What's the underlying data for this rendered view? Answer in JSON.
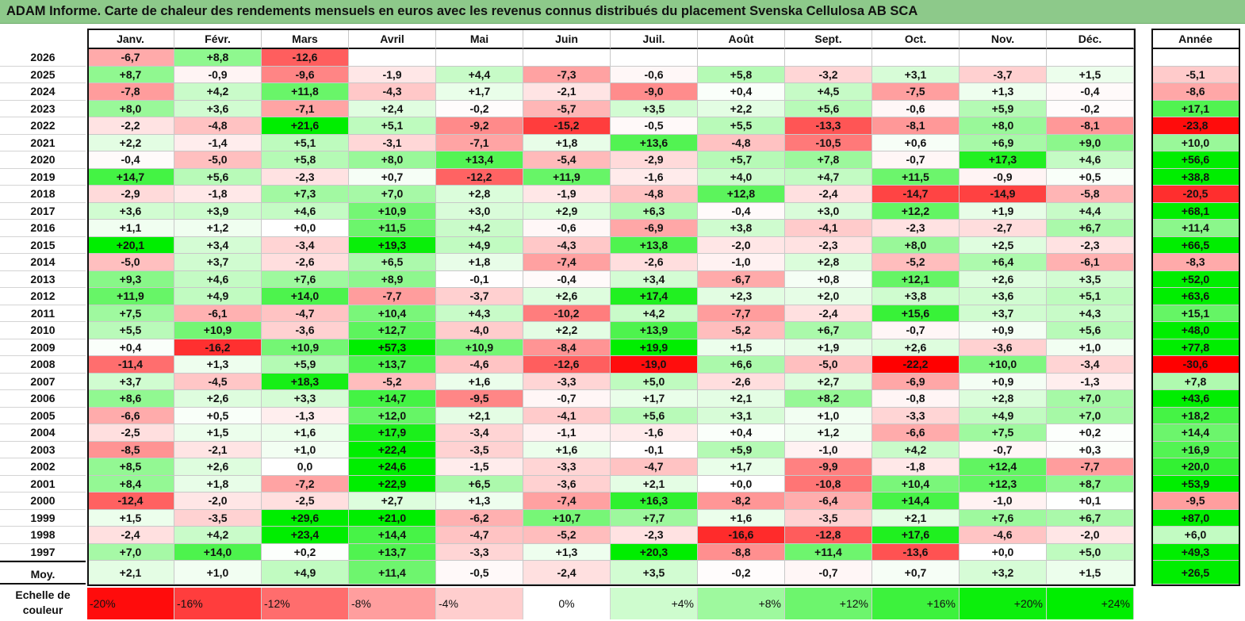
{
  "title": "ADAM Informe. Carte de chaleur des rendements mensuels en euros avec les revenus connus distribués du placement Svenska Cellulosa AB SCA",
  "months": [
    "Janv.",
    "Févr.",
    "Mars",
    "Avril",
    "Mai",
    "Juin",
    "Juil.",
    "Août",
    "Sept.",
    "Oct.",
    "Nov.",
    "Déc."
  ],
  "year_header": "Année",
  "avg_label": "Moy.",
  "scale_label": "Echelle de couleur",
  "colors": {
    "negative": "#ff0000",
    "neutral": "#ffffff",
    "positive": "#00ee00",
    "header_bg": "#8dc98a"
  },
  "chart_data": {
    "type": "heatmap",
    "title": "ADAM Informe. Carte de chaleur des rendements mensuels en euros avec les revenus connus distribués du placement Svenska Cellulosa AB SCA",
    "x_categories": [
      "Janv.",
      "Févr.",
      "Mars",
      "Avril",
      "Mai",
      "Juin",
      "Juil.",
      "Août",
      "Sept.",
      "Oct.",
      "Nov.",
      "Déc."
    ],
    "rows": [
      {
        "year": "2026",
        "months": [
          "-6,7",
          "+8,8",
          "-12,6",
          "",
          "",
          "",
          "",
          "",
          "",
          "",
          "",
          ""
        ],
        "annual": ""
      },
      {
        "year": "2025",
        "months": [
          "+8,7",
          "-0,9",
          "-9,6",
          "-1,9",
          "+4,4",
          "-7,3",
          "-0,6",
          "+5,8",
          "-3,2",
          "+3,1",
          "-3,7",
          "+1,5"
        ],
        "annual": "-5,1"
      },
      {
        "year": "2024",
        "months": [
          "-7,8",
          "+4,2",
          "+11,8",
          "-4,3",
          "+1,7",
          "-2,1",
          "-9,0",
          "+0,4",
          "+4,5",
          "-7,5",
          "+1,3",
          "-0,4"
        ],
        "annual": "-8,6"
      },
      {
        "year": "2023",
        "months": [
          "+8,0",
          "+3,6",
          "-7,1",
          "+2,4",
          "-0,2",
          "-5,7",
          "+3,5",
          "+2,2",
          "+5,6",
          "-0,6",
          "+5,9",
          "-0,2"
        ],
        "annual": "+17,1"
      },
      {
        "year": "2022",
        "months": [
          "-2,2",
          "-4,8",
          "+21,6",
          "+5,1",
          "-9,2",
          "-15,2",
          "-0,5",
          "+5,5",
          "-13,3",
          "-8,1",
          "+8,0",
          "-8,1"
        ],
        "annual": "-23,8"
      },
      {
        "year": "2021",
        "months": [
          "+2,2",
          "-1,4",
          "+5,1",
          "-3,1",
          "-7,1",
          "+1,8",
          "+13,6",
          "-4,8",
          "-10,5",
          "+0,6",
          "+6,9",
          "+9,0"
        ],
        "annual": "+10,0"
      },
      {
        "year": "2020",
        "months": [
          "-0,4",
          "-5,0",
          "+5,8",
          "+8,0",
          "+13,4",
          "-5,4",
          "-2,9",
          "+5,7",
          "+7,8",
          "-0,7",
          "+17,3",
          "+4,6"
        ],
        "annual": "+56,6"
      },
      {
        "year": "2019",
        "months": [
          "+14,7",
          "+5,6",
          "-2,3",
          "+0,7",
          "-12,2",
          "+11,9",
          "-1,6",
          "+4,0",
          "+4,7",
          "+11,5",
          "-0,9",
          "+0,5"
        ],
        "annual": "+38,8"
      },
      {
        "year": "2018",
        "months": [
          "-2,9",
          "-1,8",
          "+7,3",
          "+7,0",
          "+2,8",
          "-1,9",
          "-4,8",
          "+12,8",
          "-2,4",
          "-14,7",
          "-14,9",
          "-5,8"
        ],
        "annual": "-20,5"
      },
      {
        "year": "2017",
        "months": [
          "+3,6",
          "+3,9",
          "+4,6",
          "+10,9",
          "+3,0",
          "+2,9",
          "+6,3",
          "-0,4",
          "+3,0",
          "+12,2",
          "+1,9",
          "+4,4"
        ],
        "annual": "+68,1"
      },
      {
        "year": "2016",
        "months": [
          "+1,1",
          "+1,2",
          "+0,0",
          "+11,5",
          "+4,2",
          "-0,6",
          "-6,9",
          "+3,8",
          "-4,1",
          "-2,3",
          "-2,7",
          "+6,7"
        ],
        "annual": "+11,4"
      },
      {
        "year": "2015",
        "months": [
          "+20,1",
          "+3,4",
          "-3,4",
          "+19,3",
          "+4,9",
          "-4,3",
          "+13,8",
          "-2,0",
          "-2,3",
          "+8,0",
          "+2,5",
          "-2,3"
        ],
        "annual": "+66,5"
      },
      {
        "year": "2014",
        "months": [
          "-5,0",
          "+3,7",
          "-2,6",
          "+6,5",
          "+1,8",
          "-7,4",
          "-2,6",
          "-1,0",
          "+2,8",
          "-5,2",
          "+6,4",
          "-6,1"
        ],
        "annual": "-8,3"
      },
      {
        "year": "2013",
        "months": [
          "+9,3",
          "+4,6",
          "+7,6",
          "+8,9",
          "-0,1",
          "-0,4",
          "+3,4",
          "-6,7",
          "+0,8",
          "+12,1",
          "+2,6",
          "+3,5"
        ],
        "annual": "+52,0"
      },
      {
        "year": "2012",
        "months": [
          "+11,9",
          "+4,9",
          "+14,0",
          "-7,7",
          "-3,7",
          "+2,6",
          "+17,4",
          "+2,3",
          "+2,0",
          "+3,8",
          "+3,6",
          "+5,1"
        ],
        "annual": "+63,6"
      },
      {
        "year": "2011",
        "months": [
          "+7,5",
          "-6,1",
          "-4,7",
          "+10,4",
          "+4,3",
          "-10,2",
          "+4,2",
          "-7,7",
          "-2,4",
          "+15,6",
          "+3,7",
          "+4,3"
        ],
        "annual": "+15,1"
      },
      {
        "year": "2010",
        "months": [
          "+5,5",
          "+10,9",
          "-3,6",
          "+12,7",
          "-4,0",
          "+2,2",
          "+13,9",
          "-5,2",
          "+6,7",
          "-0,7",
          "+0,9",
          "+5,6"
        ],
        "annual": "+48,0"
      },
      {
        "year": "2009",
        "months": [
          "+0,4",
          "-16,2",
          "+10,9",
          "+57,3",
          "+10,9",
          "-8,4",
          "+19,9",
          "+1,5",
          "+1,9",
          "+2,6",
          "-3,6",
          "+1,0"
        ],
        "annual": "+77,8"
      },
      {
        "year": "2008",
        "months": [
          "-11,4",
          "+1,3",
          "+5,9",
          "+13,7",
          "-4,6",
          "-12,6",
          "-19,0",
          "+6,6",
          "-5,0",
          "-22,2",
          "+10,0",
          "-3,4"
        ],
        "annual": "-30,6"
      },
      {
        "year": "2007",
        "months": [
          "+3,7",
          "-4,5",
          "+18,3",
          "-5,2",
          "+1,6",
          "-3,3",
          "+5,0",
          "-2,6",
          "+2,7",
          "-6,9",
          "+0,9",
          "-1,3"
        ],
        "annual": "+7,8"
      },
      {
        "year": "2006",
        "months": [
          "+8,6",
          "+2,6",
          "+3,3",
          "+14,7",
          "-9,5",
          "-0,7",
          "+1,7",
          "+2,1",
          "+8,2",
          "-0,8",
          "+2,8",
          "+7,0"
        ],
        "annual": "+43,6"
      },
      {
        "year": "2005",
        "months": [
          "-6,6",
          "+0,5",
          "-1,3",
          "+12,0",
          "+2,1",
          "-4,1",
          "+5,6",
          "+3,1",
          "+1,0",
          "-3,3",
          "+4,9",
          "+7,0"
        ],
        "annual": "+18,2"
      },
      {
        "year": "2004",
        "months": [
          "-2,5",
          "+1,5",
          "+1,6",
          "+17,9",
          "-3,4",
          "-1,1",
          "-1,6",
          "+0,4",
          "+1,2",
          "-6,6",
          "+7,5",
          "+0,2"
        ],
        "annual": "+14,4"
      },
      {
        "year": "2003",
        "months": [
          "-8,5",
          "-2,1",
          "+1,0",
          "+22,4",
          "-3,5",
          "+1,6",
          "-0,1",
          "+5,9",
          "-1,0",
          "+4,2",
          "-0,7",
          "+0,3"
        ],
        "annual": "+16,9"
      },
      {
        "year": "2002",
        "months": [
          "+8,5",
          "+2,6",
          "0,0",
          "+24,6",
          "-1,5",
          "-3,3",
          "-4,7",
          "+1,7",
          "-9,9",
          "-1,8",
          "+12,4",
          "-7,7"
        ],
        "annual": "+20,0"
      },
      {
        "year": "2001",
        "months": [
          "+8,4",
          "+1,8",
          "-7,2",
          "+22,9",
          "+6,5",
          "-3,6",
          "+2,1",
          "+0,0",
          "-10,8",
          "+10,4",
          "+12,3",
          "+8,7"
        ],
        "annual": "+53,9"
      },
      {
        "year": "2000",
        "months": [
          "-12,4",
          "-2,0",
          "-2,5",
          "+2,7",
          "+1,3",
          "-7,4",
          "+16,3",
          "-8,2",
          "-6,4",
          "+14,4",
          "-1,0",
          "+0,1"
        ],
        "annual": "-9,5"
      },
      {
        "year": "1999",
        "months": [
          "+1,5",
          "-3,5",
          "+29,6",
          "+21,0",
          "-6,2",
          "+10,7",
          "+7,7",
          "+1,6",
          "-3,5",
          "+2,1",
          "+7,6",
          "+6,7"
        ],
        "annual": "+87,0"
      },
      {
        "year": "1998",
        "months": [
          "-2,4",
          "+4,2",
          "+23,4",
          "+14,4",
          "-4,7",
          "-5,2",
          "-2,3",
          "-16,6",
          "-12,8",
          "+17,6",
          "-4,6",
          "-2,0"
        ],
        "annual": "+6,0"
      },
      {
        "year": "1997",
        "months": [
          "+7,0",
          "+14,0",
          "+0,2",
          "+13,7",
          "-3,3",
          "+1,3",
          "+20,3",
          "-8,8",
          "+11,4",
          "-13,6",
          "+0,0",
          "+5,0"
        ],
        "annual": "+49,3"
      }
    ],
    "average": {
      "label": "Moy.",
      "months": [
        "+2,1",
        "+1,0",
        "+4,9",
        "+11,4",
        "-0,5",
        "-2,4",
        "+3,5",
        "-0,2",
        "-0,7",
        "+0,7",
        "+3,2",
        "+1,5"
      ],
      "annual": "+26,5"
    },
    "scale": [
      {
        "label": "-20%",
        "value": -20
      },
      {
        "label": "-16%",
        "value": -16
      },
      {
        "label": "-12%",
        "value": -12
      },
      {
        "label": "-8%",
        "value": -8
      },
      {
        "label": "-4%",
        "value": -4
      },
      {
        "label": "0%",
        "value": 0
      },
      {
        "label": "+4%",
        "value": 4
      },
      {
        "label": "+8%",
        "value": 8
      },
      {
        "label": "+12%",
        "value": 12
      },
      {
        "label": "+16%",
        "value": 16
      },
      {
        "label": "+20%",
        "value": 20
      },
      {
        "label": "+24%",
        "value": 24
      }
    ]
  }
}
